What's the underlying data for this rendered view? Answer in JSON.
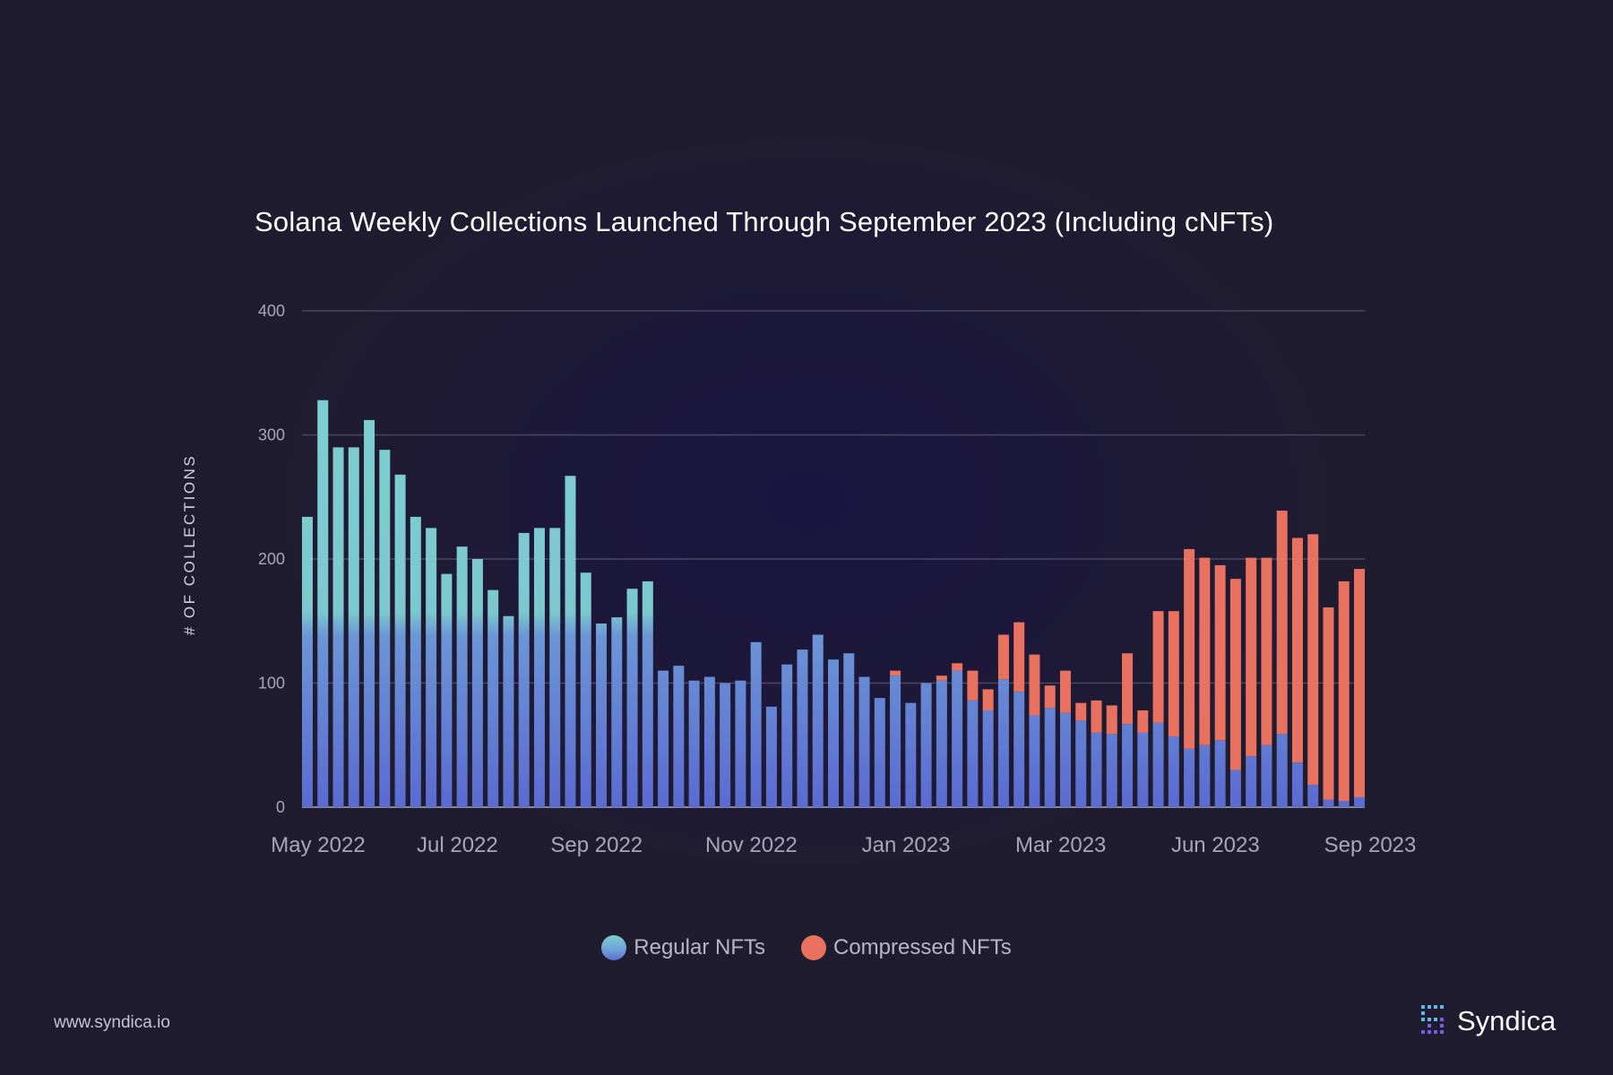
{
  "chart_data": {
    "type": "bar",
    "stacked": true,
    "title": "Solana Weekly Collections Launched Through September 2023 (Including cNFTs)",
    "ylabel": "# OF COLLECTIONS",
    "xlabel": "",
    "ylim": [
      0,
      400
    ],
    "yticks": [
      0,
      100,
      200,
      300,
      400
    ],
    "xticks": [
      "May 2022",
      "Jul 2022",
      "Sep 2022",
      "Nov 2022",
      "Jan 2023",
      "Mar 2023",
      "Jun 2023",
      "Sep 2023"
    ],
    "grid": true,
    "legend_position": "bottom-center",
    "series": [
      {
        "name": "Regular NFTs",
        "color": "#7dcfcf",
        "values": [
          234,
          328,
          290,
          290,
          312,
          288,
          268,
          234,
          225,
          188,
          210,
          200,
          175,
          154,
          221,
          225,
          225,
          267,
          189,
          148,
          153,
          176,
          182,
          110,
          114,
          102,
          105,
          100,
          102,
          133,
          81,
          115,
          127,
          139,
          119,
          124,
          105,
          88,
          106,
          84,
          100,
          102,
          110,
          86,
          78,
          103,
          93,
          74,
          80,
          76,
          70,
          60,
          59,
          67,
          60,
          68,
          57,
          47,
          50,
          54,
          30,
          41,
          50,
          59,
          36,
          18,
          6,
          5,
          8
        ]
      },
      {
        "name": "Compressed NFTs",
        "color": "#e8725f",
        "values": [
          0,
          0,
          0,
          0,
          0,
          0,
          0,
          0,
          0,
          0,
          0,
          0,
          0,
          0,
          0,
          0,
          0,
          0,
          0,
          0,
          0,
          0,
          0,
          0,
          0,
          0,
          0,
          0,
          0,
          0,
          0,
          0,
          0,
          0,
          0,
          0,
          0,
          0,
          4,
          0,
          0,
          4,
          6,
          24,
          17,
          36,
          56,
          49,
          18,
          34,
          14,
          26,
          23,
          57,
          18,
          90,
          101,
          161,
          151,
          141,
          154,
          160,
          151,
          180,
          181,
          202,
          155,
          177,
          184
        ]
      }
    ]
  },
  "footer": {
    "website": "www.syndica.io",
    "brand": "Syndica"
  }
}
